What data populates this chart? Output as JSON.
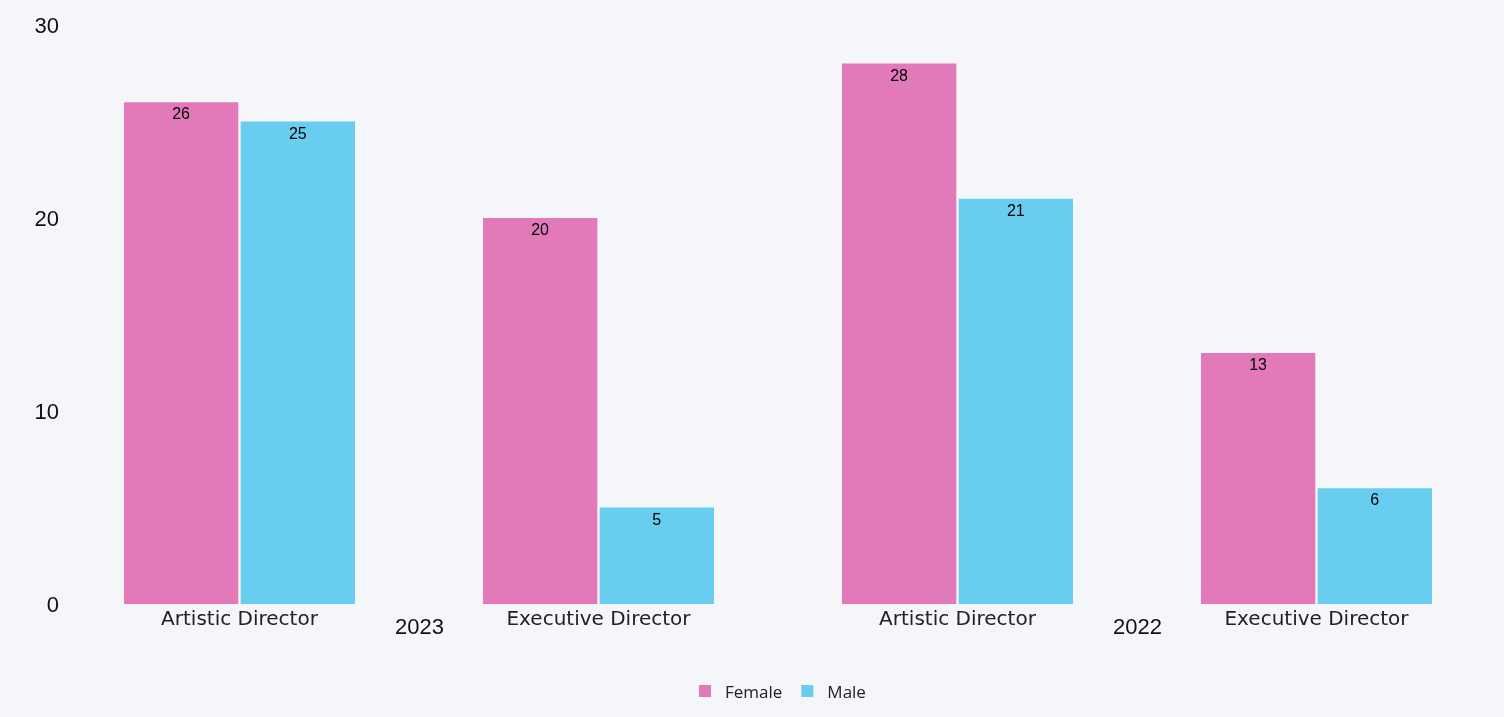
{
  "chart_data": {
    "type": "bar",
    "categories": [
      "Artistic Director",
      "Executive Director",
      "Artistic Director",
      "Executive Director"
    ],
    "series": [
      {
        "name": "Female",
        "color": "#e279b9",
        "values": [
          26,
          20,
          28,
          13
        ]
      },
      {
        "name": "Male",
        "color": "#69cdef",
        "values": [
          25,
          5,
          21,
          6
        ]
      }
    ],
    "annotations": [
      "2023",
      "2022"
    ],
    "ylim": [
      0,
      30
    ],
    "yticks": [
      0,
      10,
      20,
      30
    ],
    "grid": false,
    "legend": "bottom",
    "data_labels": true
  }
}
